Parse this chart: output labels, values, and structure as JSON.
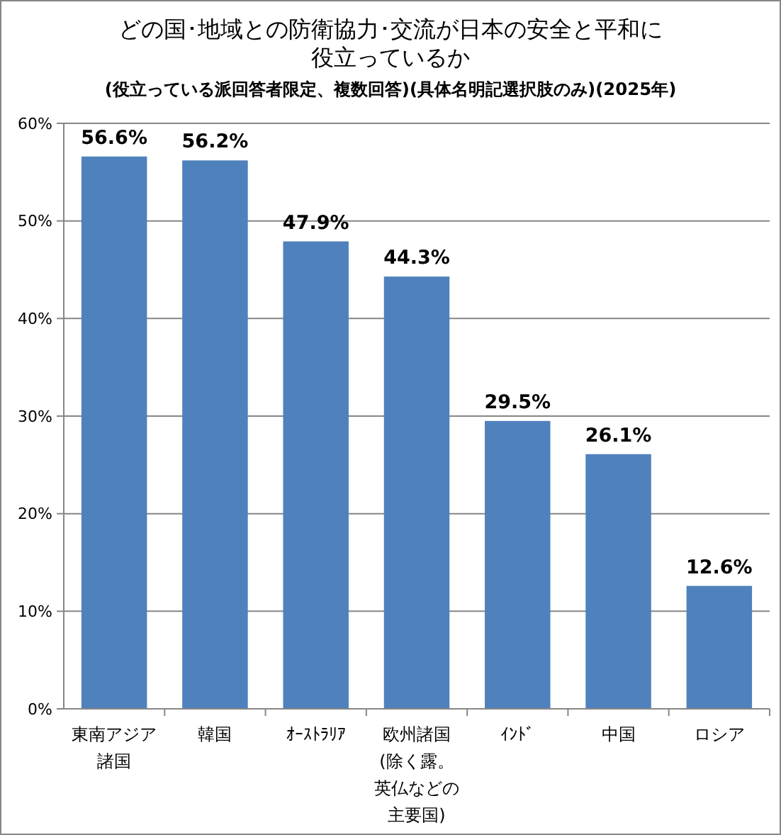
{
  "chart_data": {
    "type": "bar",
    "title": "どの国･地域との防衛協力･交流が日本の安全と平和に役立っているか",
    "subtitle": "(役立っている派回答者限定、複数回答)(具体名明記選択肢のみ)(2025年)",
    "categories": [
      "東南アジア諸国",
      "韓国",
      "ｵｰｽﾄﾗﾘｱ",
      "欧州諸国(除く露。英仏などの主要国)",
      "ｲﾝﾄﾞ",
      "中国",
      "ロシア"
    ],
    "values": [
      56.6,
      56.2,
      47.9,
      44.3,
      29.5,
      26.1,
      12.6
    ],
    "color": "#4f81bd",
    "value_labels": [
      "56.6%",
      "56.2%",
      "47.9%",
      "44.3%",
      "29.5%",
      "26.1%",
      "12.6%"
    ],
    "ylim": [
      0,
      60
    ],
    "yticks": [
      {
        "value": 0,
        "label": "0%"
      },
      {
        "value": 10,
        "label": "10%"
      },
      {
        "value": 20,
        "label": "20%"
      },
      {
        "value": 30,
        "label": "30%"
      },
      {
        "value": 40,
        "label": "40%"
      },
      {
        "value": 50,
        "label": "50%"
      },
      {
        "value": 60,
        "label": "60%"
      }
    ],
    "grid": "y"
  }
}
